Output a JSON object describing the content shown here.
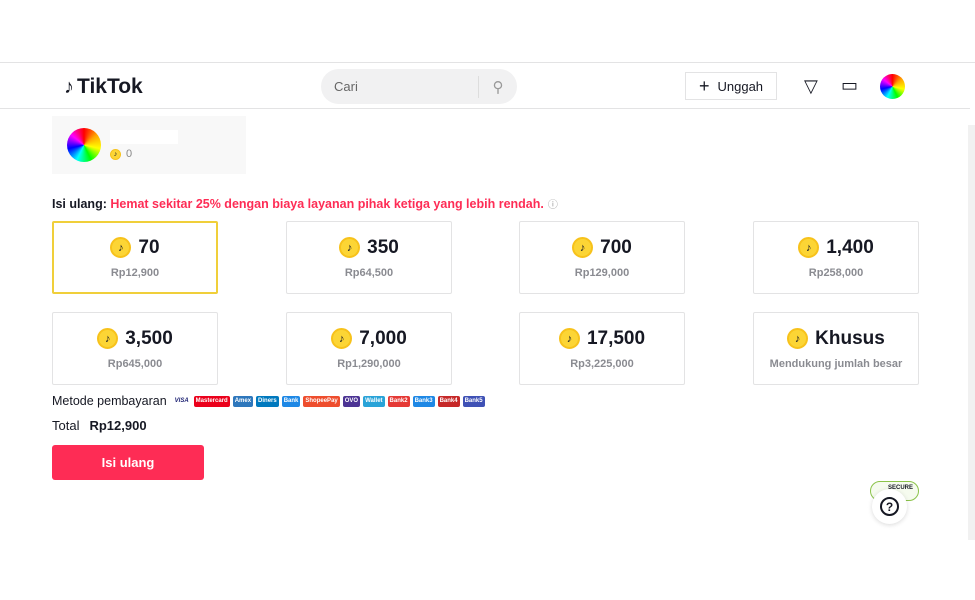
{
  "header": {
    "logo": "TikTok",
    "search_placeholder": "Cari",
    "upload_label": "Unggah"
  },
  "profile": {
    "balance": "0"
  },
  "promo": {
    "label": "Isi ulang:",
    "message": "Hemat sekitar 25% dengan biaya layanan pihak ketiga yang lebih rendah."
  },
  "packages": [
    {
      "coins": "70",
      "price": "Rp12,900",
      "selected": true
    },
    {
      "coins": "350",
      "price": "Rp64,500"
    },
    {
      "coins": "700",
      "price": "Rp129,000"
    },
    {
      "coins": "1,400",
      "price": "Rp258,000"
    },
    {
      "coins": "3,500",
      "price": "Rp645,000"
    },
    {
      "coins": "7,000",
      "price": "Rp1,290,000"
    },
    {
      "coins": "17,500",
      "price": "Rp3,225,000"
    },
    {
      "coins": "Khusus",
      "price": "Mendukung jumlah besar"
    }
  ],
  "payment": {
    "label": "Metode pembayaran",
    "methods": [
      "VISA",
      "Mastercard",
      "Amex",
      "Diners",
      "Bank",
      "ShopeePay",
      "OVO",
      "Wallet",
      "Bank2",
      "Bank3",
      "Bank4",
      "Bank5"
    ]
  },
  "total": {
    "label": "Total",
    "value": "Rp12,900"
  },
  "submit_label": "Isi ulang",
  "secure_badge": "SECURE",
  "colors": {
    "accent": "#fe2c55",
    "coin": "#fcd535",
    "selected_border": "#f0cf3a"
  }
}
